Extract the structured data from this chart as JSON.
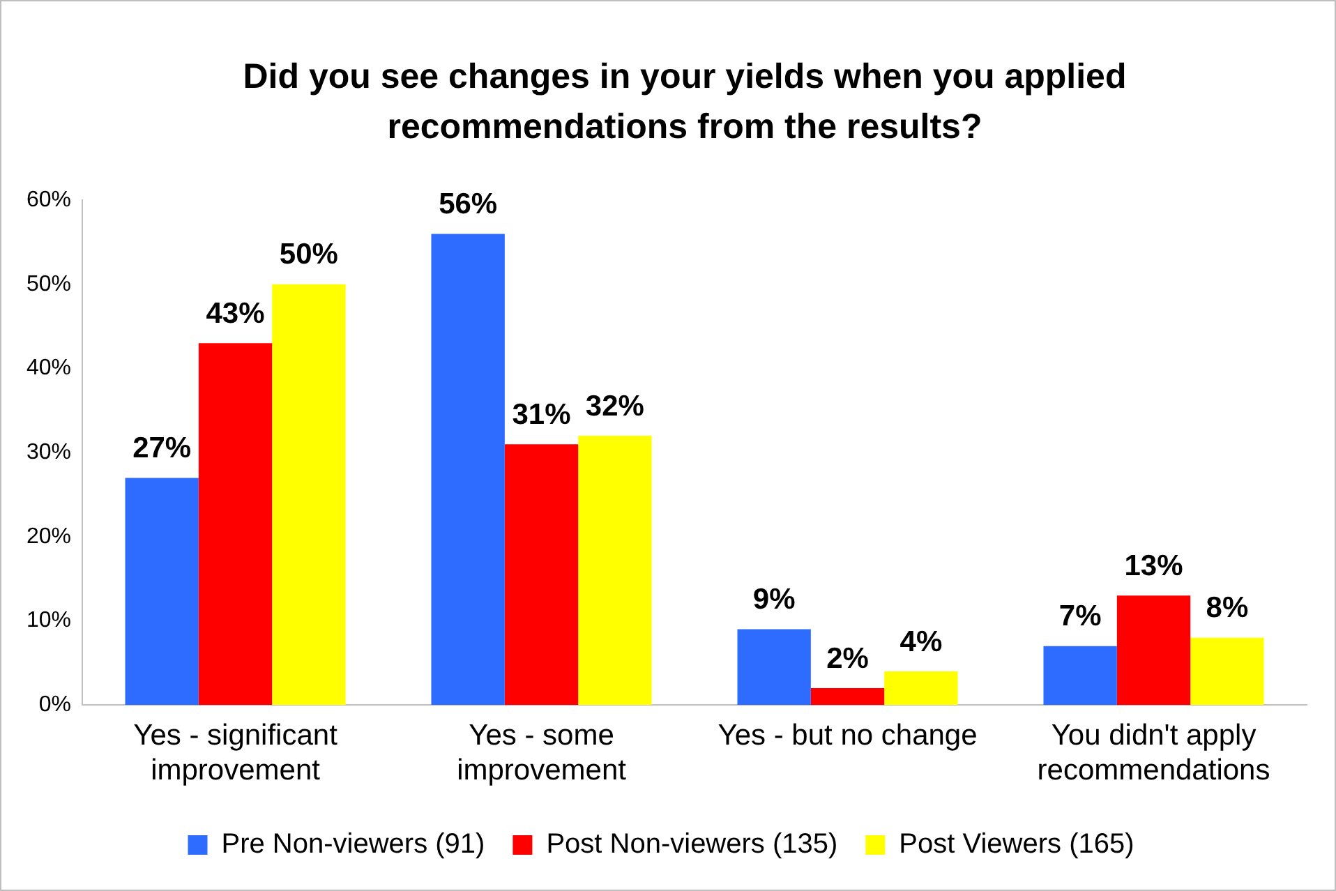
{
  "chart_data": {
    "type": "bar",
    "title": "Did you see changes in your yields when you applied recommendations from the results?",
    "categories": [
      "Yes - significant improvement",
      "Yes - some improvement",
      "Yes - but no change",
      "You didn't apply recommendations"
    ],
    "series": [
      {
        "name": "Pre Non-viewers (91)",
        "color": "#2e6bff",
        "values": [
          27,
          56,
          9,
          7
        ],
        "value_labels": [
          "27%",
          "56%",
          "9%",
          "7%"
        ]
      },
      {
        "name": "Post Non-viewers (135)",
        "color": "#ff0000",
        "values": [
          43,
          31,
          2,
          13
        ],
        "value_labels": [
          "43%",
          "31%",
          "2%",
          "13%"
        ]
      },
      {
        "name": "Post Viewers (165)",
        "color": "#ffff00",
        "values": [
          50,
          32,
          4,
          8
        ],
        "value_labels": [
          "50%",
          "32%",
          "4%",
          "8%"
        ]
      }
    ],
    "ylim": [
      0,
      60
    ],
    "yticks": [
      {
        "value": 0,
        "label": "0%"
      },
      {
        "value": 10,
        "label": "10%"
      },
      {
        "value": 20,
        "label": "20%"
      },
      {
        "value": 30,
        "label": "30%"
      },
      {
        "value": 40,
        "label": "40%"
      },
      {
        "value": 50,
        "label": "50%"
      },
      {
        "value": 60,
        "label": "60%"
      }
    ],
    "grid": false,
    "legend": "bottom"
  }
}
